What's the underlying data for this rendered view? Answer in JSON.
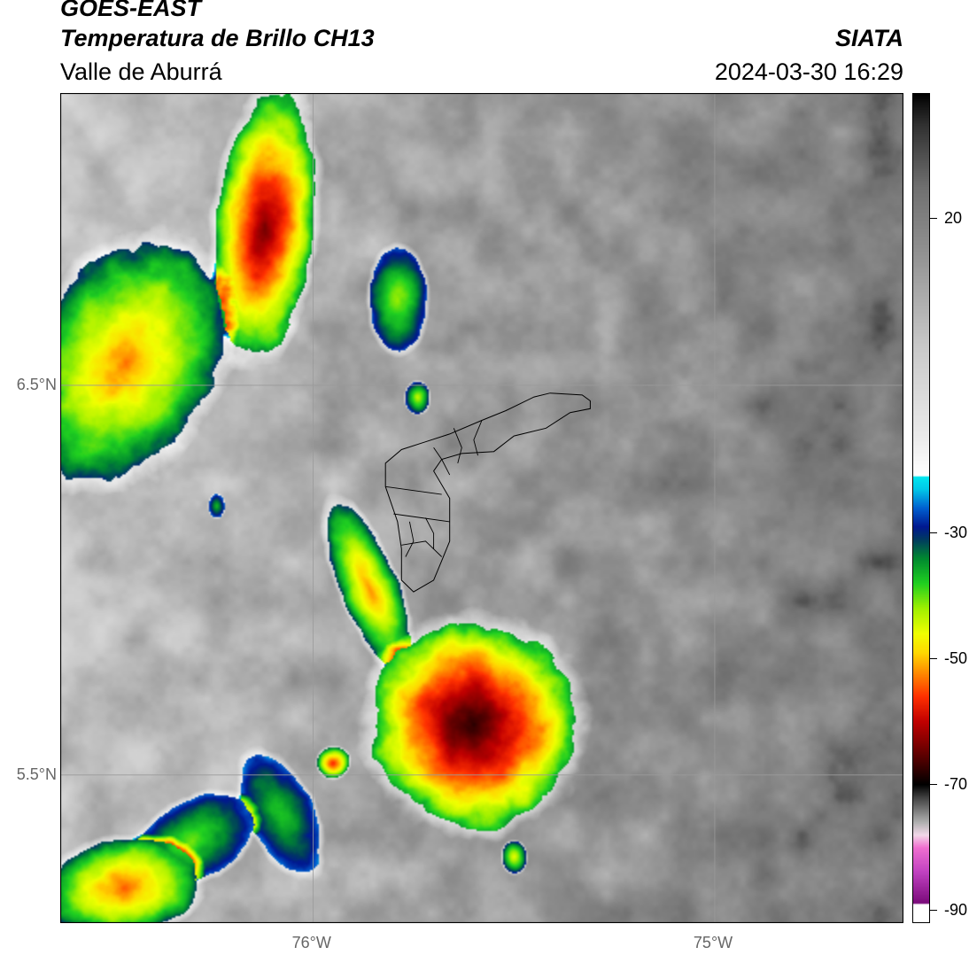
{
  "header": {
    "satellite": "GOES-EAST",
    "product": "Temperatura de Brillo CH13",
    "region": "Valle de Aburrá",
    "agency": "SIATA",
    "timestamp": "2024-03-30 16:29"
  },
  "chart_data": {
    "type": "heatmap",
    "variable": "Temperatura de Brillo CH13",
    "xlim": [
      -76.63,
      -74.53
    ],
    "ylim": [
      5.12,
      7.25
    ],
    "grid": true,
    "x_ticks": [
      {
        "value": -76.0,
        "label": "76°W"
      },
      {
        "value": -75.0,
        "label": "75°W"
      }
    ],
    "y_ticks": [
      {
        "value": 6.5,
        "label": "6.5°N"
      },
      {
        "value": 5.5,
        "label": "5.5°N"
      }
    ],
    "colorbar": {
      "range": [
        -92,
        40
      ],
      "ticks": [
        {
          "value": 20,
          "label": "20"
        },
        {
          "value": -30,
          "label": "-30"
        },
        {
          "value": -50,
          "label": "-50"
        },
        {
          "value": -70,
          "label": "-70"
        },
        {
          "value": -90,
          "label": "-90"
        }
      ],
      "stops": [
        {
          "value": -92,
          "color": "#ffffff"
        },
        {
          "value": -89,
          "color": "#ffffff"
        },
        {
          "value": -88.9,
          "color": "#7a0a7a"
        },
        {
          "value": -84,
          "color": "#c040c0"
        },
        {
          "value": -80,
          "color": "#f070d0"
        },
        {
          "value": -78,
          "color": "#f2d8e8"
        },
        {
          "value": -76,
          "color": "#b0b0b0"
        },
        {
          "value": -72,
          "color": "#404040"
        },
        {
          "value": -70,
          "color": "#000000"
        },
        {
          "value": -66,
          "color": "#500000"
        },
        {
          "value": -60,
          "color": "#c00000"
        },
        {
          "value": -56,
          "color": "#ff3000"
        },
        {
          "value": -52,
          "color": "#ff9000"
        },
        {
          "value": -49,
          "color": "#ffd800"
        },
        {
          "value": -46,
          "color": "#f0ff00"
        },
        {
          "value": -42,
          "color": "#a0f000"
        },
        {
          "value": -38,
          "color": "#20d020"
        },
        {
          "value": -34,
          "color": "#008830"
        },
        {
          "value": -31,
          "color": "#003a60"
        },
        {
          "value": -29,
          "color": "#001890"
        },
        {
          "value": -26,
          "color": "#0060d0"
        },
        {
          "value": -23,
          "color": "#00c8e8"
        },
        {
          "value": -21,
          "color": "#00e8f0"
        },
        {
          "value": -20.9,
          "color": "#ffffff"
        },
        {
          "value": -15,
          "color": "#ececec"
        },
        {
          "value": 0,
          "color": "#c8c8c8"
        },
        {
          "value": 15,
          "color": "#909090"
        },
        {
          "value": 25,
          "color": "#707070"
        },
        {
          "value": 35,
          "color": "#303030"
        },
        {
          "value": 40,
          "color": "#000000"
        }
      ]
    },
    "background_field_c": 12,
    "cloud_cells": [
      {
        "lon": -76.12,
        "lat": 6.91,
        "r_lon": 0.12,
        "r_lat": 0.33,
        "min_temp": -64,
        "rotation_deg": 6
      },
      {
        "lon": -76.47,
        "lat": 6.56,
        "r_lon": 0.22,
        "r_lat": 0.32,
        "min_temp": -52,
        "rotation_deg": 28
      },
      {
        "lon": -75.79,
        "lat": 6.72,
        "r_lon": 0.07,
        "r_lat": 0.13,
        "min_temp": -42,
        "rotation_deg": 0
      },
      {
        "lon": -75.74,
        "lat": 6.47,
        "r_lon": 0.03,
        "r_lat": 0.04,
        "min_temp": -44,
        "rotation_deg": 0
      },
      {
        "lon": -76.24,
        "lat": 6.19,
        "r_lon": 0.02,
        "r_lat": 0.03,
        "min_temp": -36,
        "rotation_deg": 0
      },
      {
        "lon": -75.86,
        "lat": 5.98,
        "r_lon": 0.07,
        "r_lat": 0.22,
        "min_temp": -52,
        "rotation_deg": -22
      },
      {
        "lon": -75.6,
        "lat": 5.63,
        "r_lon": 0.25,
        "r_lat": 0.26,
        "min_temp": -68,
        "rotation_deg": -18
      },
      {
        "lon": -76.08,
        "lat": 5.4,
        "r_lon": 0.08,
        "r_lat": 0.16,
        "min_temp": -38,
        "rotation_deg": -25
      },
      {
        "lon": -76.3,
        "lat": 5.33,
        "r_lon": 0.16,
        "r_lat": 0.1,
        "min_temp": -40,
        "rotation_deg": -30
      },
      {
        "lon": -76.47,
        "lat": 5.21,
        "r_lon": 0.19,
        "r_lat": 0.12,
        "min_temp": -54,
        "rotation_deg": -10
      },
      {
        "lon": -75.95,
        "lat": 5.53,
        "r_lon": 0.04,
        "r_lat": 0.04,
        "min_temp": -58,
        "rotation_deg": 0
      },
      {
        "lon": -75.5,
        "lat": 5.29,
        "r_lon": 0.03,
        "r_lat": 0.04,
        "min_temp": -46,
        "rotation_deg": 0
      }
    ],
    "valle_de_aburra_outline": [
      [
        -75.41,
        6.48
      ],
      [
        -75.33,
        6.475
      ],
      [
        -75.31,
        6.46
      ],
      [
        -75.31,
        6.44
      ],
      [
        -75.36,
        6.43
      ],
      [
        -75.42,
        6.39
      ],
      [
        -75.5,
        6.37
      ],
      [
        -75.55,
        6.33
      ],
      [
        -75.63,
        6.325
      ],
      [
        -75.68,
        6.31
      ],
      [
        -75.7,
        6.28
      ],
      [
        -75.66,
        6.21
      ],
      [
        -75.66,
        6.1
      ],
      [
        -75.68,
        6.05
      ],
      [
        -75.7,
        6.0
      ],
      [
        -75.75,
        5.97
      ],
      [
        -75.78,
        6.0
      ],
      [
        -75.78,
        6.08
      ],
      [
        -75.79,
        6.15
      ],
      [
        -75.82,
        6.24
      ],
      [
        -75.82,
        6.3
      ],
      [
        -75.78,
        6.335
      ],
      [
        -75.72,
        6.355
      ],
      [
        -75.66,
        6.375
      ],
      [
        -75.58,
        6.41
      ],
      [
        -75.52,
        6.435
      ],
      [
        -75.45,
        6.47
      ]
    ],
    "municipal_boundaries": [
      [
        [
          -75.7,
          6.34
        ],
        [
          -75.68,
          6.31
        ],
        [
          -75.66,
          6.27
        ]
      ],
      [
        [
          -75.65,
          6.39
        ],
        [
          -75.63,
          6.34
        ],
        [
          -75.64,
          6.3
        ]
      ],
      [
        [
          -75.58,
          6.41
        ],
        [
          -75.6,
          6.36
        ],
        [
          -75.59,
          6.32
        ]
      ],
      [
        [
          -75.82,
          6.24
        ],
        [
          -75.75,
          6.23
        ],
        [
          -75.68,
          6.22
        ]
      ],
      [
        [
          -75.8,
          6.17
        ],
        [
          -75.73,
          6.16
        ],
        [
          -75.66,
          6.15
        ]
      ],
      [
        [
          -75.78,
          6.09
        ],
        [
          -75.72,
          6.1
        ],
        [
          -75.68,
          6.06
        ]
      ],
      [
        [
          -75.76,
          6.15
        ],
        [
          -75.75,
          6.1
        ],
        [
          -75.77,
          6.06
        ]
      ],
      [
        [
          -75.72,
          6.16
        ],
        [
          -75.7,
          6.12
        ],
        [
          -75.7,
          6.08
        ]
      ]
    ]
  }
}
